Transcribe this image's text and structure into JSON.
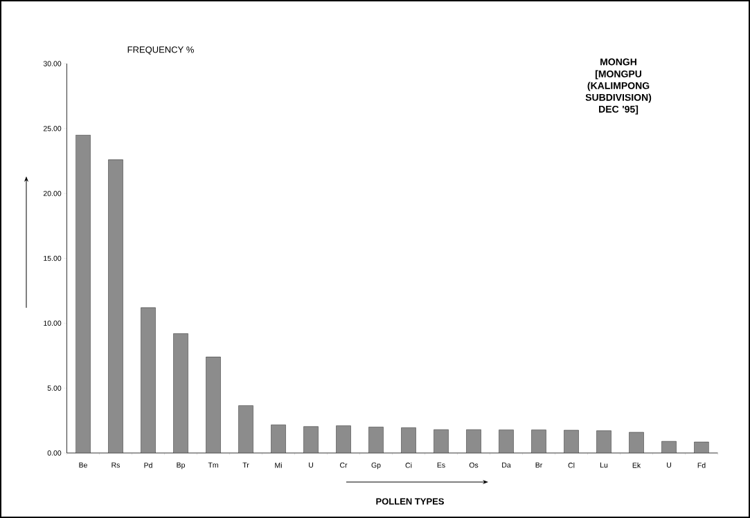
{
  "chart_data": {
    "type": "bar",
    "title": "MONGH",
    "subtitle": "[MONGPU (KALIMPONG SUBDIVISION) DEC '95]",
    "ylabel": "FREQUENCY %",
    "xlabel": "POLLEN TYPES",
    "categories": [
      "Be",
      "Rs",
      "Pd",
      "Bp",
      "Tm",
      "Tr",
      "Mi",
      "U",
      "Cr",
      "Gp",
      "Ci",
      "Es",
      "Os",
      "Da",
      "Br",
      "Cl",
      "Lu",
      "Ek",
      "U",
      "Fd"
    ],
    "values": [
      24.5,
      22.6,
      11.2,
      9.2,
      7.4,
      3.65,
      2.17,
      2.04,
      2.1,
      2.0,
      1.95,
      1.8,
      1.8,
      1.78,
      1.78,
      1.76,
      1.72,
      1.6,
      0.9,
      0.85
    ],
    "color": "#8c8c8c",
    "ylim": [
      0,
      30
    ],
    "yticks": [
      {
        "value": 0,
        "label": "0.00"
      },
      {
        "value": 5,
        "label": "5.00"
      },
      {
        "value": 10,
        "label": "10.00"
      },
      {
        "value": 15,
        "label": "15.00"
      },
      {
        "value": 20,
        "label": "20.00"
      },
      {
        "value": 25,
        "label": "25.00"
      },
      {
        "value": 30,
        "label": "30.00"
      }
    ],
    "grid": false
  }
}
